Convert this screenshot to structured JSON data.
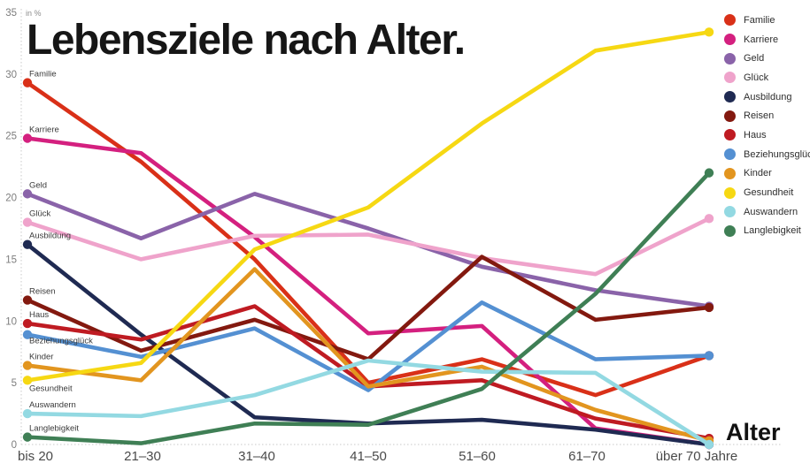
{
  "title": "Lebensziele nach Alter.",
  "y_axis_unit": "in %",
  "x_axis_title": "Alter",
  "chart_data": {
    "type": "line",
    "title": "Lebensziele nach Alter.",
    "xlabel": "Alter",
    "ylabel": "in %",
    "ylim": [
      0,
      35
    ],
    "yticks": [
      0,
      5,
      10,
      15,
      20,
      25,
      30,
      35
    ],
    "grid": false,
    "legend_position": "top-right",
    "categories": [
      "bis 20",
      "21–30",
      "31–40",
      "41–50",
      "51–60",
      "61–70",
      "über 70 Jahre"
    ],
    "series": [
      {
        "name": "Familie",
        "color": "#d93018",
        "values": [
          29.3,
          22.9,
          15.0,
          5.0,
          6.9,
          4.0,
          7.2
        ]
      },
      {
        "name": "Karriere",
        "color": "#d4207f",
        "values": [
          24.8,
          23.6,
          16.8,
          9.0,
          9.6,
          1.3,
          0.0
        ]
      },
      {
        "name": "Geld",
        "color": "#8a63a9",
        "values": [
          20.3,
          16.7,
          20.3,
          17.5,
          14.4,
          12.5,
          11.2
        ]
      },
      {
        "name": "Glück",
        "color": "#efa3cb",
        "values": [
          18.0,
          15.0,
          16.9,
          17.0,
          15.1,
          13.8,
          18.3
        ]
      },
      {
        "name": "Ausbildung",
        "color": "#1f2a52",
        "values": [
          16.2,
          8.9,
          2.2,
          1.7,
          2.0,
          1.2,
          0.0
        ]
      },
      {
        "name": "Reisen",
        "color": "#83190f",
        "values": [
          11.7,
          7.6,
          10.1,
          6.9,
          15.2,
          10.1,
          11.1
        ]
      },
      {
        "name": "Haus",
        "color": "#bf1b22",
        "values": [
          9.8,
          8.5,
          11.2,
          4.7,
          5.2,
          2.1,
          0.5
        ]
      },
      {
        "name": "Beziehungsglück",
        "color": "#5490d2",
        "values": [
          8.9,
          7.1,
          9.4,
          4.4,
          11.5,
          6.9,
          7.2
        ]
      },
      {
        "name": "Kinder",
        "color": "#e2951f",
        "values": [
          6.4,
          5.2,
          14.2,
          4.7,
          6.3,
          2.8,
          0.3
        ]
      },
      {
        "name": "Gesundheit",
        "color": "#f6d813",
        "values": [
          5.2,
          6.6,
          15.8,
          19.2,
          26.0,
          31.9,
          33.4
        ]
      },
      {
        "name": "Auswandern",
        "color": "#93d9e2",
        "values": [
          2.5,
          2.3,
          4.0,
          6.8,
          5.9,
          5.8,
          0.0
        ]
      },
      {
        "name": "Langlebigkeit",
        "color": "#3f7f55",
        "values": [
          0.6,
          0.1,
          1.7,
          1.6,
          4.5,
          12.2,
          22.0
        ]
      }
    ]
  }
}
